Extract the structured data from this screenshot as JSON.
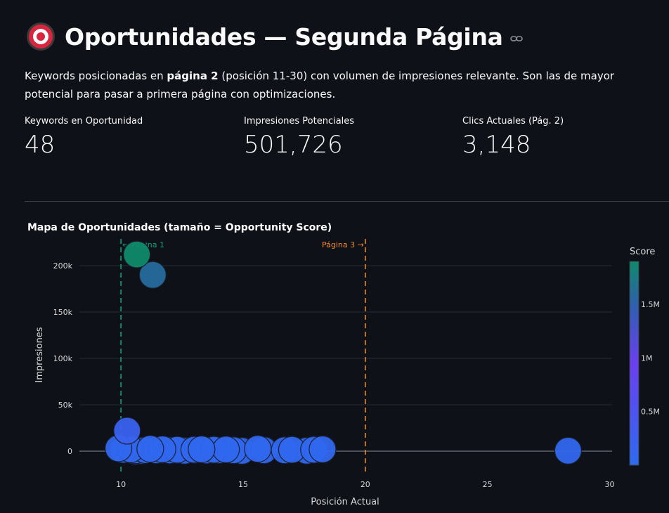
{
  "header": {
    "title": "Oportunidades — Segunda Página",
    "icon": "direct-hit-icon",
    "link_icon": "link-icon"
  },
  "description": {
    "prefix": "Keywords posicionadas en ",
    "bold": "página 2",
    "suffix": " (posición 11-30) con volumen de impresiones relevante. Son las de mayor potencial para pasar a primera página con optimizaciones."
  },
  "metrics": [
    {
      "label": "Keywords en Oportunidad",
      "value": "48"
    },
    {
      "label": "Impresiones Potenciales",
      "value": "501,726"
    },
    {
      "label": "Clics Actuales (Pág. 2)",
      "value": "3,148"
    }
  ],
  "chart_data": {
    "type": "scatter",
    "title": "Mapa de Oportunidades (tamaño = Opportunity Score)",
    "xlabel": "Posición Actual",
    "ylabel": "Impresiones",
    "xlim": [
      8.3,
      30.1
    ],
    "ylim": [
      -25000,
      225000
    ],
    "xticks": [
      10,
      15,
      20,
      25,
      30
    ],
    "yticks": [
      0,
      50000,
      100000,
      150000,
      200000
    ],
    "ytick_labels": [
      "0",
      "50k",
      "100k",
      "150k",
      "200k"
    ],
    "grid": true,
    "colorbar": {
      "title": "Score",
      "ticks": [
        500000,
        1000000,
        1500000
      ],
      "tick_labels": [
        "0.5M",
        "1M",
        "1.5M"
      ],
      "range": [
        0,
        1900000
      ],
      "colors": [
        "#2d6bf0",
        "#6b3ff0",
        "#2f5fb0",
        "#0f8a6a"
      ]
    },
    "reference_lines": [
      {
        "x": 10,
        "label": "← Página 1",
        "color": "#10a37f"
      },
      {
        "x": 20,
        "label": "Página 3 →",
        "color": "#f28c28"
      }
    ],
    "points": [
      {
        "x": 10.65,
        "y": 212000,
        "score": 1900000
      },
      {
        "x": 11.3,
        "y": 190000,
        "score": 1600000
      },
      {
        "x": 10.25,
        "y": 22000,
        "score": 200000
      },
      {
        "x": 9.9,
        "y": 3000,
        "score": 60000
      },
      {
        "x": 10.1,
        "y": 1500,
        "score": 60000
      },
      {
        "x": 10.4,
        "y": 2000,
        "score": 60000
      },
      {
        "x": 10.6,
        "y": 1000,
        "score": 60000
      },
      {
        "x": 10.85,
        "y": 500,
        "score": 60000
      },
      {
        "x": 10.6,
        "y": 0,
        "score": 300000
      },
      {
        "x": 11.0,
        "y": 1200,
        "score": 60000
      },
      {
        "x": 11.2,
        "y": 2500,
        "score": 60000
      },
      {
        "x": 11.45,
        "y": 1000,
        "score": 60000
      },
      {
        "x": 11.7,
        "y": 2000,
        "score": 60000
      },
      {
        "x": 12.0,
        "y": 800,
        "score": 60000
      },
      {
        "x": 12.3,
        "y": 1500,
        "score": 60000
      },
      {
        "x": 12.6,
        "y": 500,
        "score": 60000
      },
      {
        "x": 13.0,
        "y": 1500,
        "score": 60000
      },
      {
        "x": 13.3,
        "y": 2000,
        "score": 60000
      },
      {
        "x": 13.5,
        "y": 800,
        "score": 60000
      },
      {
        "x": 13.8,
        "y": 1500,
        "score": 60000
      },
      {
        "x": 14.0,
        "y": 1000,
        "score": 60000
      },
      {
        "x": 14.3,
        "y": 1800,
        "score": 60000
      },
      {
        "x": 14.6,
        "y": 1000,
        "score": 60000
      },
      {
        "x": 14.95,
        "y": 300,
        "score": 60000
      },
      {
        "x": 15.6,
        "y": 2500,
        "score": 60000
      },
      {
        "x": 15.85,
        "y": 1000,
        "score": 60000
      },
      {
        "x": 16.7,
        "y": 1000,
        "score": 60000
      },
      {
        "x": 17.0,
        "y": 1500,
        "score": 60000
      },
      {
        "x": 17.6,
        "y": 500,
        "score": 60000
      },
      {
        "x": 17.9,
        "y": 1500,
        "score": 60000
      },
      {
        "x": 18.25,
        "y": 2000,
        "score": 60000
      },
      {
        "x": 28.3,
        "y": 500,
        "score": 60000
      }
    ]
  }
}
